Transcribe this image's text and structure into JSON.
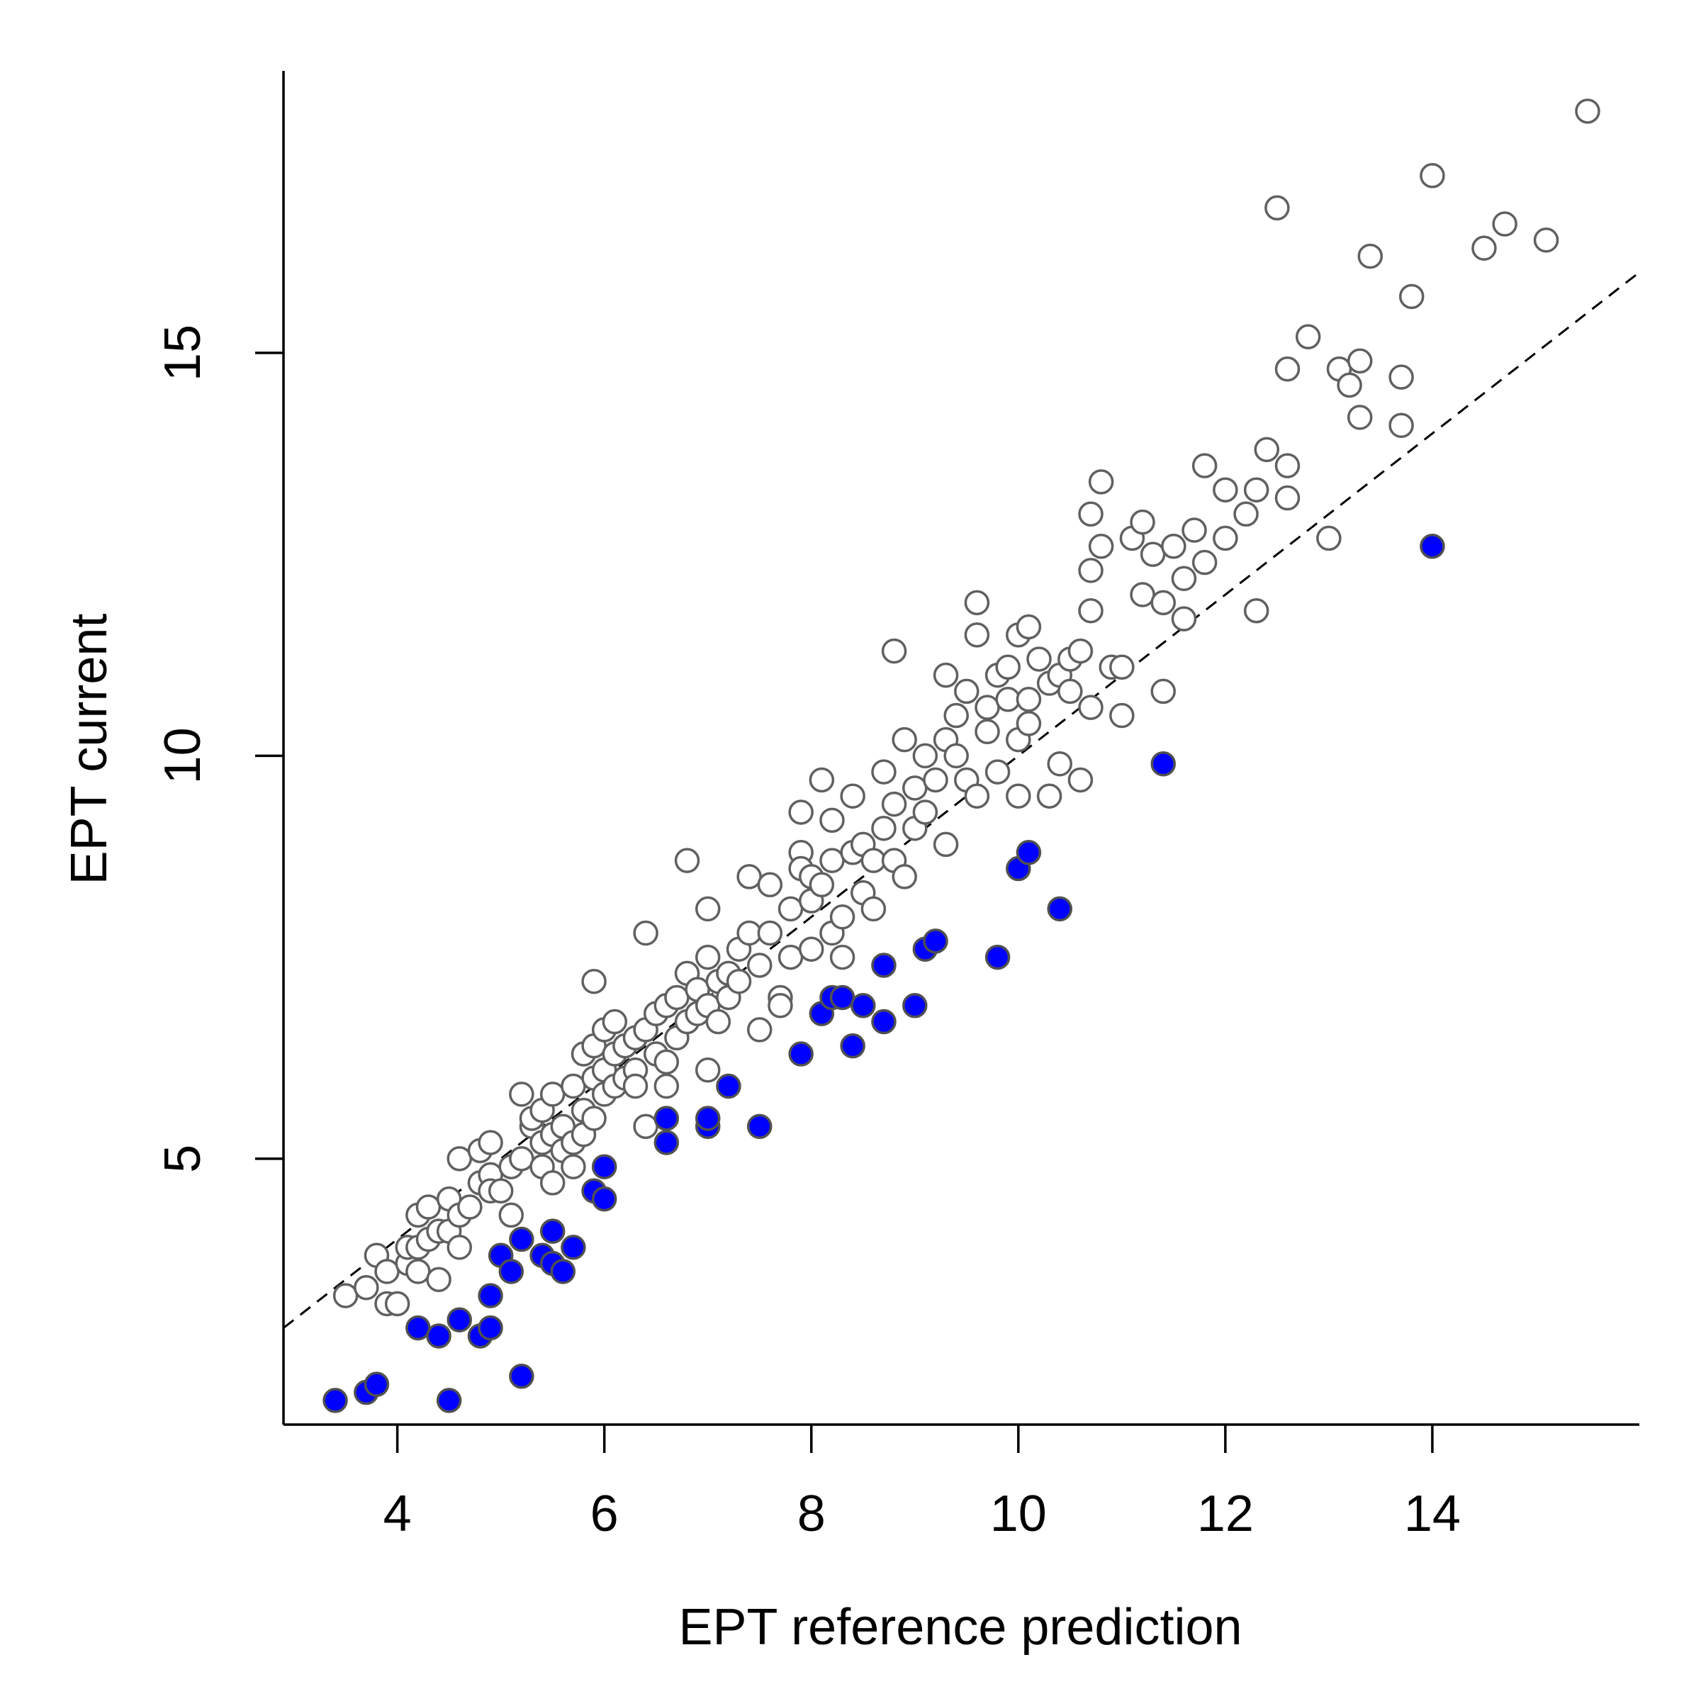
{
  "chart_data": {
    "type": "scatter",
    "xlabel": "EPT reference prediction",
    "ylabel": "EPT current",
    "xlim": [
      2.9,
      16.0
    ],
    "ylim": [
      1.7,
      18.5
    ],
    "x_ticks": [
      4,
      6,
      8,
      10,
      12,
      14
    ],
    "y_ticks": [
      5,
      10,
      15
    ],
    "grid": false,
    "legend": "none",
    "reference_line": {
      "slope": 1,
      "intercept": 0,
      "style": "dashed",
      "color": "#000000"
    },
    "colors": {
      "open_stroke": "#606060",
      "open_fill": "#ffffff",
      "filled": "#0000ff",
      "filled_stroke": "#505050"
    },
    "series": [
      {
        "marker": "open",
        "points": [
          [
            3.5,
            3.3
          ],
          [
            3.7,
            3.4
          ],
          [
            3.8,
            3.8
          ],
          [
            3.9,
            3.6
          ],
          [
            3.9,
            3.2
          ],
          [
            4.0,
            3.2
          ],
          [
            4.1,
            3.7
          ],
          [
            4.1,
            3.9
          ],
          [
            4.2,
            3.9
          ],
          [
            4.2,
            3.6
          ],
          [
            4.2,
            4.3
          ],
          [
            4.3,
            4.0
          ],
          [
            4.3,
            4.4
          ],
          [
            4.4,
            3.5
          ],
          [
            4.4,
            4.1
          ],
          [
            4.5,
            4.5
          ],
          [
            4.5,
            4.1
          ],
          [
            4.6,
            4.3
          ],
          [
            4.6,
            5.0
          ],
          [
            4.6,
            3.9
          ],
          [
            4.7,
            4.4
          ],
          [
            4.8,
            4.7
          ],
          [
            4.8,
            5.1
          ],
          [
            4.9,
            4.8
          ],
          [
            4.9,
            5.2
          ],
          [
            4.9,
            4.6
          ],
          [
            5.0,
            4.6
          ],
          [
            5.1,
            4.9
          ],
          [
            5.1,
            4.3
          ],
          [
            5.2,
            5.0
          ],
          [
            5.2,
            5.8
          ],
          [
            5.3,
            5.4
          ],
          [
            5.3,
            5.5
          ],
          [
            5.4,
            5.2
          ],
          [
            5.4,
            4.9
          ],
          [
            5.4,
            5.6
          ],
          [
            5.5,
            5.3
          ],
          [
            5.5,
            5.8
          ],
          [
            5.5,
            4.7
          ],
          [
            5.6,
            5.4
          ],
          [
            5.6,
            5.1
          ],
          [
            5.7,
            5.9
          ],
          [
            5.7,
            5.2
          ],
          [
            5.7,
            4.9
          ],
          [
            5.8,
            5.6
          ],
          [
            5.8,
            6.3
          ],
          [
            5.8,
            5.3
          ],
          [
            5.9,
            6.0
          ],
          [
            5.9,
            6.4
          ],
          [
            5.9,
            5.5
          ],
          [
            5.9,
            7.2
          ],
          [
            6.0,
            6.1
          ],
          [
            6.0,
            5.8
          ],
          [
            6.0,
            6.6
          ],
          [
            6.1,
            6.3
          ],
          [
            6.1,
            5.9
          ],
          [
            6.1,
            6.7
          ],
          [
            6.2,
            6.0
          ],
          [
            6.2,
            6.4
          ],
          [
            6.3,
            6.5
          ],
          [
            6.3,
            6.1
          ],
          [
            6.3,
            5.9
          ],
          [
            6.4,
            6.6
          ],
          [
            6.4,
            5.4
          ],
          [
            6.4,
            7.8
          ],
          [
            6.5,
            6.3
          ],
          [
            6.5,
            6.8
          ],
          [
            6.6,
            6.2
          ],
          [
            6.6,
            6.9
          ],
          [
            6.6,
            5.9
          ],
          [
            6.7,
            7.0
          ],
          [
            6.7,
            6.5
          ],
          [
            6.8,
            7.3
          ],
          [
            6.8,
            6.7
          ],
          [
            6.8,
            8.7
          ],
          [
            6.9,
            6.8
          ],
          [
            6.9,
            7.1
          ],
          [
            7.0,
            7.5
          ],
          [
            7.0,
            6.9
          ],
          [
            7.0,
            8.1
          ],
          [
            7.0,
            6.1
          ],
          [
            7.1,
            7.2
          ],
          [
            7.1,
            6.7
          ],
          [
            7.2,
            7.3
          ],
          [
            7.2,
            7.0
          ],
          [
            7.3,
            7.6
          ],
          [
            7.3,
            7.2
          ],
          [
            7.4,
            7.8
          ],
          [
            7.4,
            8.5
          ],
          [
            7.5,
            7.4
          ],
          [
            7.5,
            6.6
          ],
          [
            7.6,
            7.8
          ],
          [
            7.6,
            8.4
          ],
          [
            7.7,
            7.0
          ],
          [
            7.7,
            6.9
          ],
          [
            7.8,
            8.1
          ],
          [
            7.8,
            7.5
          ],
          [
            7.9,
            8.8
          ],
          [
            7.9,
            9.3
          ],
          [
            7.9,
            8.6
          ],
          [
            8.0,
            8.2
          ],
          [
            8.0,
            7.6
          ],
          [
            8.0,
            8.5
          ],
          [
            8.1,
            8.4
          ],
          [
            8.1,
            9.7
          ],
          [
            8.2,
            8.7
          ],
          [
            8.2,
            9.2
          ],
          [
            8.2,
            7.8
          ],
          [
            8.3,
            8.0
          ],
          [
            8.3,
            7.5
          ],
          [
            8.4,
            8.8
          ],
          [
            8.4,
            9.5
          ],
          [
            8.5,
            8.9
          ],
          [
            8.5,
            8.3
          ],
          [
            8.6,
            8.1
          ],
          [
            8.6,
            8.7
          ],
          [
            8.7,
            9.1
          ],
          [
            8.7,
            9.8
          ],
          [
            8.8,
            9.4
          ],
          [
            8.8,
            8.7
          ],
          [
            8.8,
            11.3
          ],
          [
            8.9,
            8.5
          ],
          [
            8.9,
            10.2
          ],
          [
            9.0,
            9.1
          ],
          [
            9.0,
            9.6
          ],
          [
            9.1,
            10.0
          ],
          [
            9.1,
            9.3
          ],
          [
            9.2,
            9.7
          ],
          [
            9.3,
            10.2
          ],
          [
            9.3,
            11.0
          ],
          [
            9.3,
            8.9
          ],
          [
            9.4,
            10.0
          ],
          [
            9.4,
            10.5
          ],
          [
            9.5,
            9.7
          ],
          [
            9.5,
            10.8
          ],
          [
            9.6,
            11.9
          ],
          [
            9.6,
            11.5
          ],
          [
            9.6,
            9.5
          ],
          [
            9.7,
            10.6
          ],
          [
            9.7,
            10.3
          ],
          [
            9.8,
            11.0
          ],
          [
            9.8,
            9.8
          ],
          [
            9.9,
            10.7
          ],
          [
            9.9,
            11.1
          ],
          [
            10.0,
            10.2
          ],
          [
            10.0,
            9.5
          ],
          [
            10.0,
            11.5
          ],
          [
            10.1,
            10.4
          ],
          [
            10.1,
            11.6
          ],
          [
            10.1,
            10.7
          ],
          [
            10.2,
            11.2
          ],
          [
            10.3,
            10.9
          ],
          [
            10.3,
            9.5
          ],
          [
            10.4,
            11.0
          ],
          [
            10.4,
            9.9
          ],
          [
            10.5,
            11.2
          ],
          [
            10.5,
            10.8
          ],
          [
            10.6,
            11.3
          ],
          [
            10.6,
            9.7
          ],
          [
            10.7,
            10.6
          ],
          [
            10.7,
            12.3
          ],
          [
            10.7,
            11.8
          ],
          [
            10.7,
            13.0
          ],
          [
            10.8,
            13.4
          ],
          [
            10.8,
            12.6
          ],
          [
            10.9,
            11.1
          ],
          [
            11.0,
            10.5
          ],
          [
            11.0,
            11.1
          ],
          [
            11.1,
            12.7
          ],
          [
            11.2,
            12.9
          ],
          [
            11.2,
            12.0
          ],
          [
            11.3,
            12.5
          ],
          [
            11.4,
            11.9
          ],
          [
            11.4,
            10.8
          ],
          [
            11.5,
            12.6
          ],
          [
            11.6,
            12.2
          ],
          [
            11.6,
            11.7
          ],
          [
            11.7,
            12.8
          ],
          [
            11.8,
            12.4
          ],
          [
            11.8,
            13.6
          ],
          [
            12.0,
            12.7
          ],
          [
            12.0,
            13.3
          ],
          [
            12.2,
            13.0
          ],
          [
            12.3,
            11.8
          ],
          [
            12.3,
            13.3
          ],
          [
            12.4,
            13.8
          ],
          [
            12.5,
            16.8
          ],
          [
            12.6,
            13.6
          ],
          [
            12.6,
            13.2
          ],
          [
            12.6,
            14.8
          ],
          [
            12.8,
            15.2
          ],
          [
            13.0,
            12.7
          ],
          [
            13.1,
            14.8
          ],
          [
            13.2,
            14.6
          ],
          [
            13.3,
            14.9
          ],
          [
            13.3,
            14.2
          ],
          [
            13.4,
            16.2
          ],
          [
            13.7,
            14.1
          ],
          [
            13.7,
            14.7
          ],
          [
            13.8,
            15.7
          ],
          [
            14.0,
            17.2
          ],
          [
            14.5,
            16.3
          ],
          [
            14.7,
            16.6
          ],
          [
            15.1,
            16.4
          ],
          [
            15.5,
            18.0
          ]
        ]
      },
      {
        "marker": "filled",
        "points": [
          [
            3.4,
            2.0
          ],
          [
            3.7,
            2.1
          ],
          [
            3.8,
            2.2
          ],
          [
            4.2,
            2.9
          ],
          [
            4.4,
            2.8
          ],
          [
            4.5,
            2.0
          ],
          [
            4.6,
            3.0
          ],
          [
            4.8,
            2.8
          ],
          [
            4.9,
            2.9
          ],
          [
            4.9,
            3.3
          ],
          [
            5.0,
            3.8
          ],
          [
            5.1,
            3.6
          ],
          [
            5.2,
            4.0
          ],
          [
            5.2,
            2.3
          ],
          [
            5.4,
            3.8
          ],
          [
            5.5,
            4.1
          ],
          [
            5.5,
            3.7
          ],
          [
            5.6,
            3.6
          ],
          [
            5.7,
            3.9
          ],
          [
            5.9,
            4.6
          ],
          [
            6.0,
            4.5
          ],
          [
            6.0,
            4.9
          ],
          [
            6.6,
            5.5
          ],
          [
            6.6,
            5.2
          ],
          [
            7.0,
            5.4
          ],
          [
            7.0,
            5.5
          ],
          [
            7.2,
            5.9
          ],
          [
            7.5,
            5.4
          ],
          [
            7.9,
            6.3
          ],
          [
            8.1,
            6.8
          ],
          [
            8.2,
            7.0
          ],
          [
            8.3,
            7.0
          ],
          [
            8.4,
            6.4
          ],
          [
            8.5,
            6.9
          ],
          [
            8.7,
            7.4
          ],
          [
            8.7,
            6.7
          ],
          [
            9.0,
            6.9
          ],
          [
            9.1,
            7.6
          ],
          [
            9.2,
            7.7
          ],
          [
            9.8,
            7.5
          ],
          [
            10.0,
            8.6
          ],
          [
            10.1,
            8.8
          ],
          [
            10.4,
            8.1
          ],
          [
            11.4,
            9.9
          ],
          [
            14.0,
            12.6
          ]
        ]
      }
    ]
  }
}
